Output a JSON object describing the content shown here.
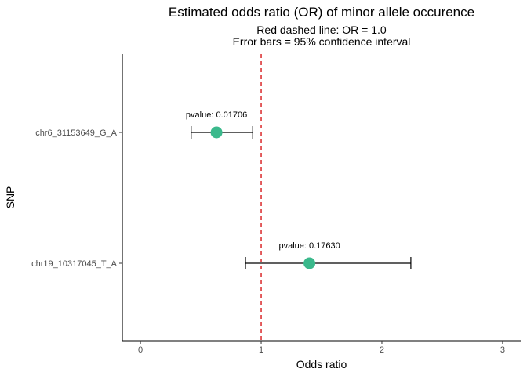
{
  "chart_data": {
    "type": "scatter",
    "title": "Estimated odds ratio (OR) of minor allele occurence",
    "subtitle_lines": [
      "Red dashed line: OR = 1.0",
      "Error bars = 95% confidence interval"
    ],
    "xlabel": "Odds ratio",
    "ylabel": "SNP",
    "xlim": [
      -0.15,
      3.15
    ],
    "x_ticks": [
      0,
      1,
      2,
      3
    ],
    "reference_line": {
      "x": 1.0,
      "color": "#d7191c",
      "style": "dashed"
    },
    "point_color": "#3bb98c",
    "grid": false,
    "points": [
      {
        "snp": "chr6_31153649_G_A",
        "or": 0.63,
        "ci_low": 0.42,
        "ci_high": 0.93,
        "pvalue_label": "pvalue: 0.01706"
      },
      {
        "snp": "chr19_10317045_T_A",
        "or": 1.4,
        "ci_low": 0.87,
        "ci_high": 2.24,
        "pvalue_label": "pvalue: 0.17630"
      }
    ]
  }
}
